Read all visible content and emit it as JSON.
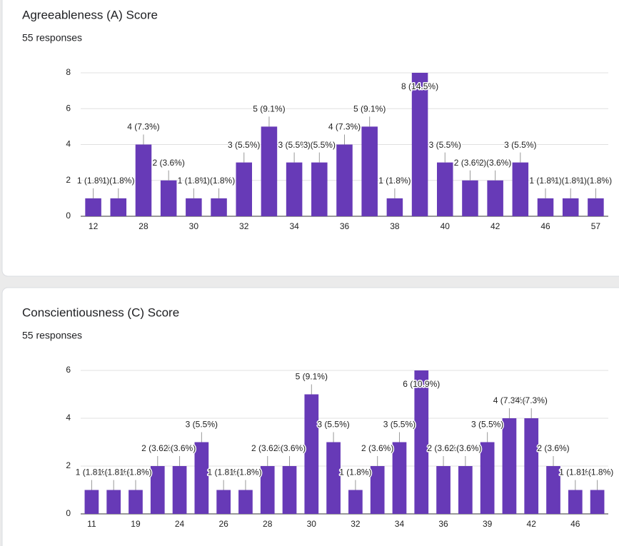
{
  "chart_data": [
    {
      "type": "bar",
      "title": "Agreeableness (A) Score",
      "subtitle": "55 responses",
      "categories": [
        12,
        null,
        28,
        null,
        30,
        null,
        32,
        null,
        34,
        null,
        36,
        null,
        38,
        null,
        40,
        null,
        42,
        null,
        46,
        null,
        57
      ],
      "values": [
        1,
        1,
        4,
        2,
        1,
        1,
        3,
        5,
        3,
        3,
        4,
        5,
        1,
        8,
        3,
        2,
        2,
        3,
        1,
        1,
        1
      ],
      "value_labels": [
        "1 (1.8%)",
        "1 (1.8%)",
        "4 (7.3%)",
        "2 (3.6%)",
        "1 (1.8%)",
        "1 (1.8%)",
        "3 (5.5%)",
        "5 (9.1%)",
        "3 (5.5%)",
        "3 (5.5%)",
        "4 (7.3%)",
        "5 (9.1%)",
        "1 (1.8%)",
        "8 (14.5%)",
        "3 (5.5%)",
        "2 (3.6%)",
        "2 (3.6%)",
        "3 (5.5%)",
        "1 (1.8%)",
        "1 (1.8%)",
        "1 (1.8%)"
      ],
      "color": "#673ab7",
      "ylim": [
        0,
        8
      ],
      "yticks": [
        0,
        2,
        4,
        6,
        8
      ],
      "grid": true
    },
    {
      "type": "bar",
      "title": "Conscientiousness (C) Score",
      "subtitle": "55 responses",
      "categories": [
        11,
        null,
        19,
        null,
        24,
        null,
        26,
        null,
        28,
        null,
        30,
        null,
        32,
        null,
        34,
        null,
        36,
        null,
        39,
        null,
        42,
        null,
        46,
        null
      ],
      "values": [
        1,
        1,
        1,
        2,
        2,
        3,
        1,
        1,
        2,
        2,
        5,
        3,
        1,
        2,
        3,
        6,
        2,
        2,
        3,
        4,
        4,
        2,
        1,
        1
      ],
      "value_labels": [
        "1 (1.8%)",
        "1 (1.8%)",
        "1 (1.8%)",
        "2 (3.6%)",
        "2 (3.6%)",
        "3 (5.5%)",
        "1 (1.8%)",
        "1 (1.8%)",
        "2 (3.6%)",
        "2 (3.6%)",
        "5 (9.1%)",
        "3 (5.5%)",
        "1 (1.8%)",
        "2 (3.6%)",
        "3 (5.5%)",
        "6 (10.9%)",
        "2 (3.6%)",
        "2 (3.6%)",
        "3 (5.5%)",
        "4 (7.3%)",
        "4 (7.3%)",
        "2 (3.6%)",
        "1 (1.8%)",
        "1 (1.8%)"
      ],
      "color": "#673ab7",
      "ylim": [
        0,
        6
      ],
      "yticks": [
        0,
        2,
        4,
        6
      ],
      "grid": true
    }
  ]
}
